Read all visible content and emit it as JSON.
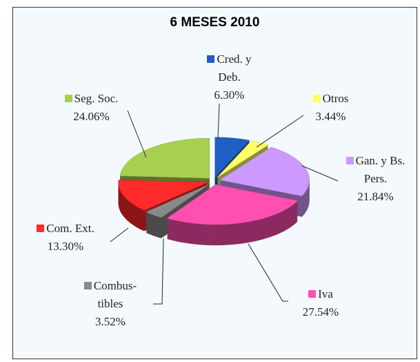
{
  "chart_data": {
    "type": "pie",
    "title": "6 MESES 2010",
    "categories": [
      "Cred. y Deb.",
      "Otros",
      "Gan. y Bs. Pers.",
      "Iva",
      "Combus-tibles",
      "Com. Ext.",
      "Seg. Soc."
    ],
    "values": [
      6.3,
      3.44,
      21.84,
      27.54,
      3.52,
      13.3,
      24.06
    ],
    "value_labels": [
      "6.30%",
      "3.44%",
      "21.84%",
      "27.54%",
      "3.52%",
      "13.30%",
      "24.06%"
    ],
    "colors": [
      "#1f5fc4",
      "#ffff66",
      "#cc99ff",
      "#ff4fb0",
      "#8a8a8a",
      "#ff2a2a",
      "#a8d050"
    ]
  }
}
